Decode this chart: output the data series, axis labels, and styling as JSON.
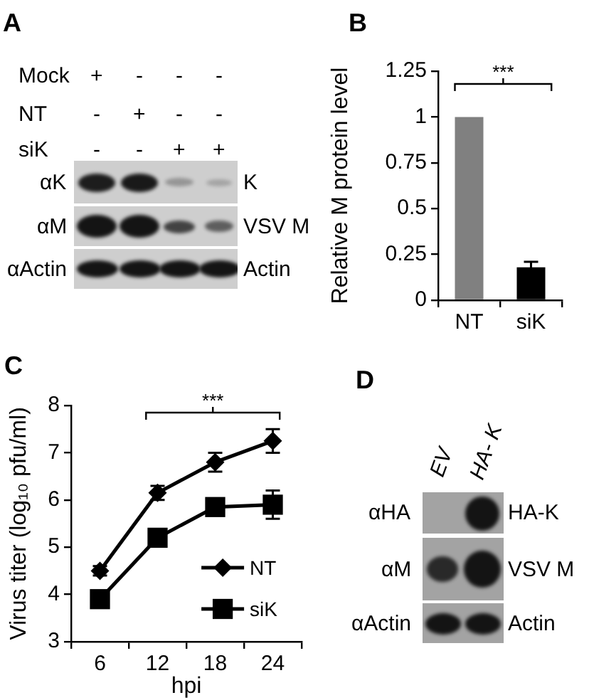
{
  "chart_data": [
    {
      "type": "other",
      "title": "A",
      "annotations": [
        "Mock",
        "+",
        "-",
        "-",
        "-",
        "NT",
        "-",
        "+",
        "-",
        "-",
        "siK",
        "-",
        "-",
        "+",
        "+",
        "αK",
        "K",
        "αM",
        "VSV M",
        "αActin",
        "Actin"
      ]
    },
    {
      "type": "bar",
      "title": "B",
      "ylabel": "Relative M protein level",
      "categories": [
        "NT",
        "siK"
      ],
      "values": [
        1,
        0.18
      ],
      "colors": [
        "#808080",
        "#000000"
      ],
      "errors": [
        null,
        0.03
      ],
      "ylim": [
        0,
        1.25
      ],
      "yticks": [
        0,
        0.25,
        0.5,
        0.75,
        1,
        1.25
      ],
      "legend": false,
      "annotations": [
        "***"
      ]
    },
    {
      "type": "line",
      "title": "C",
      "xlabel": "hpi",
      "ylabel": "Virus titer (log₁₀ pfu/ml)",
      "categories": [
        "6",
        "12",
        "18",
        "24"
      ],
      "series": [
        {
          "name": "NT",
          "color": "#000000",
          "marker": "diamond",
          "values": [
            4.5,
            6.15,
            6.8,
            7.25
          ],
          "errors": [
            0.1,
            0.15,
            0.2,
            0.25
          ]
        },
        {
          "name": "siK",
          "color": "#000000",
          "marker": "square",
          "values": [
            3.9,
            5.2,
            5.85,
            5.9
          ],
          "errors": [
            null,
            null,
            null,
            0.3
          ]
        }
      ],
      "ylim": [
        3,
        8
      ],
      "yticks": [
        3,
        4,
        5,
        6,
        7,
        8
      ],
      "legend": "bottom right",
      "annotations": [
        "***"
      ]
    },
    {
      "type": "other",
      "title": "D",
      "annotations": [
        "EV",
        "HA- K",
        "αHA",
        "HA-K",
        "αM",
        "VSV M",
        "αActin",
        "Actin"
      ]
    }
  ]
}
